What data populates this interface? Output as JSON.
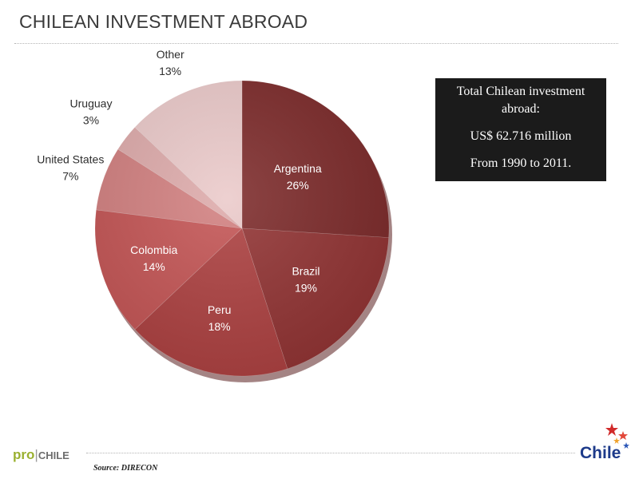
{
  "title": "CHILEAN INVESTMENT ABROAD",
  "info_box": {
    "line1": "Total Chilean investment abroad:",
    "line2": "US$ 62.716 million",
    "line3": "From 1990 to 2011."
  },
  "source": "Source: DIRECON",
  "logos": {
    "prochile_pro": "pro",
    "prochile_bar": "|",
    "prochile_chile": "CHILE",
    "chile_word": "Chile"
  },
  "chart_data": {
    "type": "pie",
    "categories": [
      "Argentina",
      "Brazil",
      "Peru",
      "Colombia",
      "United States",
      "Uruguay",
      "Other"
    ],
    "values": [
      26,
      19,
      18,
      14,
      7,
      3,
      13
    ],
    "value_labels": [
      "26%",
      "19%",
      "18%",
      "14%",
      "7%",
      "3%",
      "13%"
    ],
    "colors": [
      "#7d2b2b",
      "#923434",
      "#ad4141",
      "#c45555",
      "#d28080",
      "#deabab",
      "#ebcaca"
    ],
    "start_angle_deg": 0,
    "direction": "clockwise",
    "legend": "none",
    "title": ""
  }
}
